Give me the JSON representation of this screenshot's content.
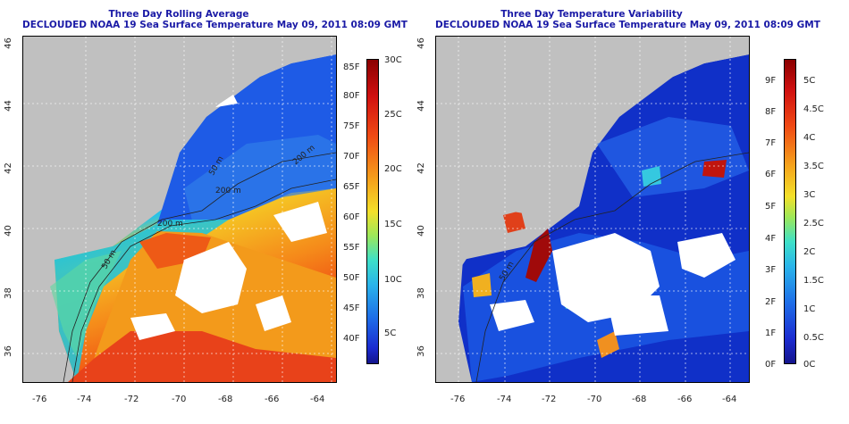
{
  "left_panel": {
    "title_line1": "Three Day Rolling Average",
    "title_line2": "DECLOUDED NOAA 19 Sea Surface Temperature May 09, 2011 08:09 GMT",
    "colorbar_F": [
      "85F",
      "80F",
      "75F",
      "70F",
      "65F",
      "60F",
      "55F",
      "50F",
      "45F",
      "40F"
    ],
    "colorbar_C": [
      "30C",
      "25C",
      "20C",
      "15C",
      "10C",
      "5C"
    ],
    "contour_labels": [
      "50 m",
      "200 m",
      "200 m",
      "50 m",
      "200 m"
    ]
  },
  "right_panel": {
    "title_line1": "Three Day Temperature Variability",
    "title_line2": "DECLOUDED NOAA 19 Sea Surface Temperature May 09, 2011 08:09 GMT",
    "colorbar_F": [
      "9F",
      "8F",
      "7F",
      "6F",
      "5F",
      "4F",
      "3F",
      "2F",
      "1F",
      "0F"
    ],
    "colorbar_C": [
      "5C",
      "4.5C",
      "4C",
      "3.5C",
      "3C",
      "2.5C",
      "2C",
      "1.5C",
      "1C",
      "0.5C",
      "0C"
    ],
    "contour_labels": [
      "50 m"
    ]
  },
  "axes": {
    "lon_ticks": [
      "-76",
      "-74",
      "-72",
      "-70",
      "-68",
      "-66",
      "-64"
    ],
    "lat_ticks": [
      "46",
      "44",
      "42",
      "40",
      "38",
      "36"
    ]
  },
  "colors": {
    "land": "#c0c0c0",
    "title": "#1a1aa6",
    "ocean_cold": "#1f5de0",
    "ocean_warm": "#f7a11d",
    "variability_base": "#1030c8"
  }
}
